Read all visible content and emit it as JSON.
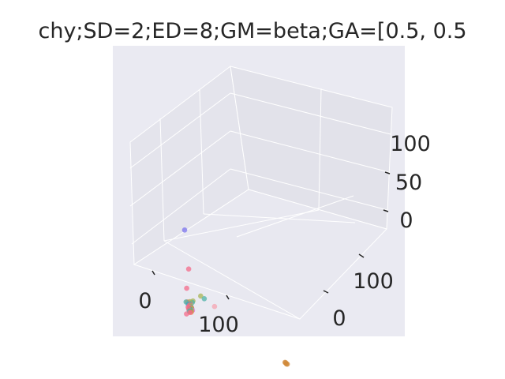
{
  "chart_data": {
    "type": "scatter",
    "title": "chy;SD=2;ED=8;GM=beta;GA=[0.5, 0.5",
    "xlabel": "",
    "ylabel": "",
    "zlabel": "",
    "projection": "3d",
    "grid": true,
    "legend": "none",
    "x_ticks": [
      "0",
      "100"
    ],
    "y_ticks": [
      "0",
      "100"
    ],
    "z_ticks": [
      "0",
      "50",
      "100"
    ],
    "xlim": [
      -15,
      160
    ],
    "ylim": [
      -60,
      160
    ],
    "zlim": [
      -15,
      130
    ],
    "points": [
      {
        "x": 2,
        "y": 2,
        "z": 105,
        "color": "#7b73ee"
      },
      {
        "x": 8,
        "y": 3,
        "z": 60,
        "color": "#f46b8a"
      },
      {
        "x": 5,
        "y": 2,
        "z": 35,
        "color": "#f46b8a"
      },
      {
        "x": 3,
        "y": -5,
        "z": 2,
        "color": "#f46b8a"
      },
      {
        "x": 70,
        "y": 100,
        "z": 50,
        "color": "#f5a3b0"
      },
      {
        "x": 45,
        "y": 80,
        "z": 50,
        "color": "#a8b455"
      },
      {
        "x": 45,
        "y": 60,
        "z": 45,
        "color": "#4fb3a8"
      },
      {
        "x": 16,
        "y": 10,
        "z": 25,
        "color": "#a8b455"
      },
      {
        "x": 14,
        "y": 6,
        "z": 22,
        "color": "#4fb3a8"
      },
      {
        "x": 10,
        "y": 4,
        "z": 21,
        "color": "#a8b455"
      },
      {
        "x": 10,
        "y": 3,
        "z": 18,
        "color": "#ee8355"
      },
      {
        "x": 9,
        "y": 1,
        "z": 18,
        "color": "#f46b8a"
      },
      {
        "x": 8,
        "y": 0,
        "z": 18,
        "color": "#4fb3a8"
      },
      {
        "x": 5,
        "y": -1,
        "z": 18,
        "color": "#ee8355"
      },
      {
        "x": 3,
        "y": -2,
        "z": 17,
        "color": "#4fb3a8"
      },
      {
        "x": 7,
        "y": 1,
        "z": 16,
        "color": "#3aa6c0"
      },
      {
        "x": 9,
        "y": 2,
        "z": 16,
        "color": "#f46b8a"
      },
      {
        "x": 11,
        "y": 3,
        "z": 16,
        "color": "#a8b455"
      },
      {
        "x": 12,
        "y": 4,
        "z": 15,
        "color": "#4fb3a8"
      },
      {
        "x": 13,
        "y": 5,
        "z": 14,
        "color": "#5fae5a"
      },
      {
        "x": 12,
        "y": 3,
        "z": 14,
        "color": "#ee8355"
      },
      {
        "x": 8,
        "y": 0,
        "z": 13,
        "color": "#f46b8a"
      },
      {
        "x": 10,
        "y": 1,
        "z": 12,
        "color": "#a8b455"
      },
      {
        "x": 14,
        "y": 5,
        "z": 12,
        "color": "#e86cd4"
      },
      {
        "x": 6,
        "y": -2,
        "z": 12,
        "color": "#f46b8a"
      },
      {
        "x": 9,
        "y": 0,
        "z": 11,
        "color": "#5fae5a"
      },
      {
        "x": 11,
        "y": 2,
        "z": 11,
        "color": "#4fb3a8"
      },
      {
        "x": 7,
        "y": -1,
        "z": 10,
        "color": "#f46b8a"
      },
      {
        "x": 12,
        "y": 2,
        "z": 10,
        "color": "#a8b455"
      },
      {
        "x": 10,
        "y": 1,
        "z": 9,
        "color": "#5fae5a"
      },
      {
        "x": 8,
        "y": -1,
        "z": 8,
        "color": "#4fb3a8"
      },
      {
        "x": 11,
        "y": 1,
        "z": 8,
        "color": "#ee8355"
      },
      {
        "x": 9,
        "y": 0,
        "z": 7,
        "color": "#f46b8a"
      },
      {
        "x": 140,
        "y": -20,
        "z": 2,
        "color": "#d08a3a"
      },
      {
        "x": 141,
        "y": -20,
        "z": 2,
        "color": "#d08a3a"
      },
      {
        "x": 142,
        "y": -20,
        "z": 1,
        "color": "#d08a3a"
      },
      {
        "x": 143,
        "y": -21,
        "z": 1,
        "color": "#d08a3a"
      }
    ]
  }
}
